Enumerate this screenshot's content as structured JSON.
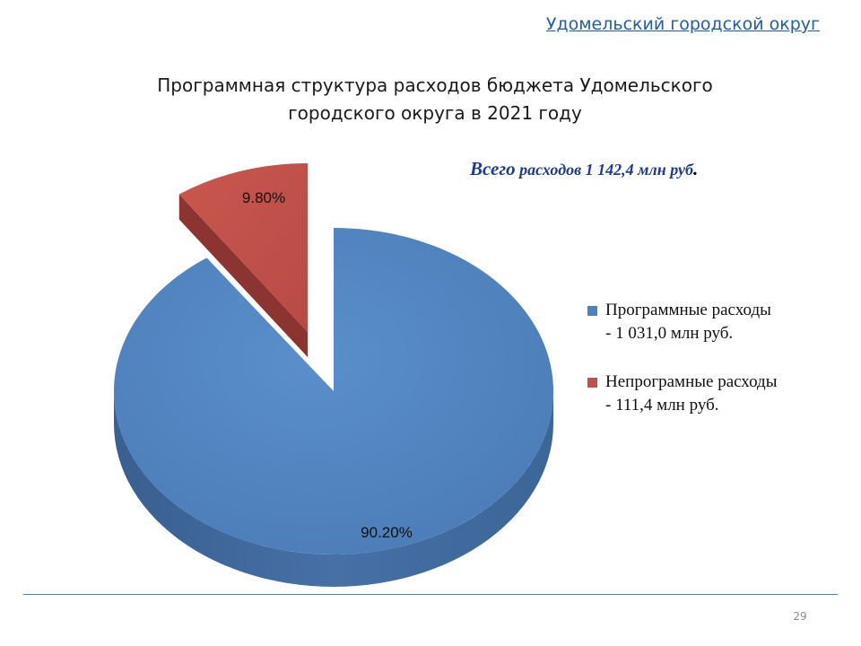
{
  "header": {
    "org_name": "Удомельский городской округ"
  },
  "slide_title": {
    "line1": "Программная структура расходов бюджета Удомельского",
    "line2": "городского округа в 2021 году"
  },
  "total": {
    "lead": "Всего",
    "rest": " расходов 1 142,4 млн руб",
    "dot": "."
  },
  "colors": {
    "programmatic": "#4f81bd",
    "non_programmatic": "#c0504d"
  },
  "chart_data": {
    "type": "pie",
    "style": "3d-exploded",
    "categories": [
      "Программные расходы",
      "Непрограмные расходы"
    ],
    "values": [
      90.2,
      9.8
    ],
    "data_labels": [
      "90.20%",
      "9.80%"
    ],
    "legend_position": "right",
    "legend": [
      {
        "line1": "Программные расходы",
        "line2": "- 1 031,0 млн руб."
      },
      {
        "line1": "Непрограмные расходы",
        "line2": "- 111,4 млн руб."
      }
    ]
  },
  "footer": {
    "page_number": "29"
  }
}
